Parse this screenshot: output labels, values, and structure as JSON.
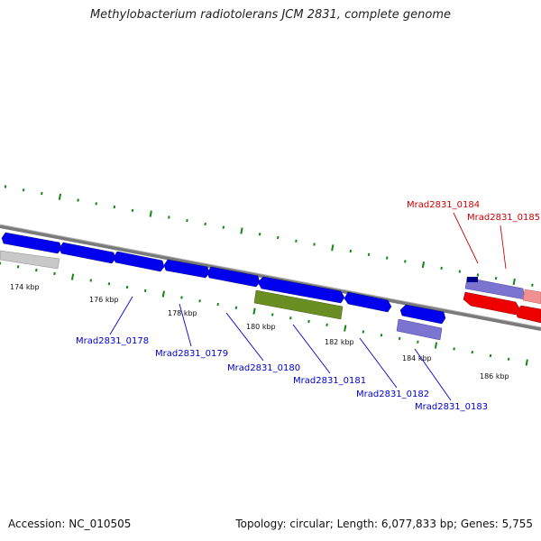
{
  "title": "Methylobacterium radiotolerans JCM 2831, complete genome",
  "footer": {
    "accession": "Accession: NC_010505",
    "summary": "Topology: circular; Length: 6,077,833 bp; Genes: 5,755"
  },
  "colors": {
    "forward_gene": "#0000ee",
    "reverse_gene_light": "#7b74d0",
    "highlight": "#ee0000",
    "highlight_light": "#f09090",
    "olive_gene": "#6b8e23",
    "grey_gene": "#c0c0c0",
    "ruler_tick": "#118811",
    "backbone": "#808080",
    "label_blue": "#0000cc",
    "label_red": "#cc0000"
  },
  "ruler": {
    "ticks": [
      {
        "label": "174 kbp"
      },
      {
        "label": "176 kbp"
      },
      {
        "label": "178 kbp"
      },
      {
        "label": "180 kbp"
      },
      {
        "label": "182 kbp"
      },
      {
        "label": "184 kbp"
      },
      {
        "label": "186 kbp"
      }
    ]
  },
  "genes": [
    {
      "label": "Mrad2831_0178",
      "color": "blue"
    },
    {
      "label": "Mrad2831_0179",
      "color": "blue"
    },
    {
      "label": "Mrad2831_0180",
      "color": "blue"
    },
    {
      "label": "Mrad2831_0181",
      "color": "blue"
    },
    {
      "label": "Mrad2831_0182",
      "color": "blue"
    },
    {
      "label": "Mrad2831_0183",
      "color": "blue"
    },
    {
      "label": "Mrad2831_0184",
      "color": "red"
    },
    {
      "label": "Mrad2831_0185",
      "color": "red"
    }
  ]
}
